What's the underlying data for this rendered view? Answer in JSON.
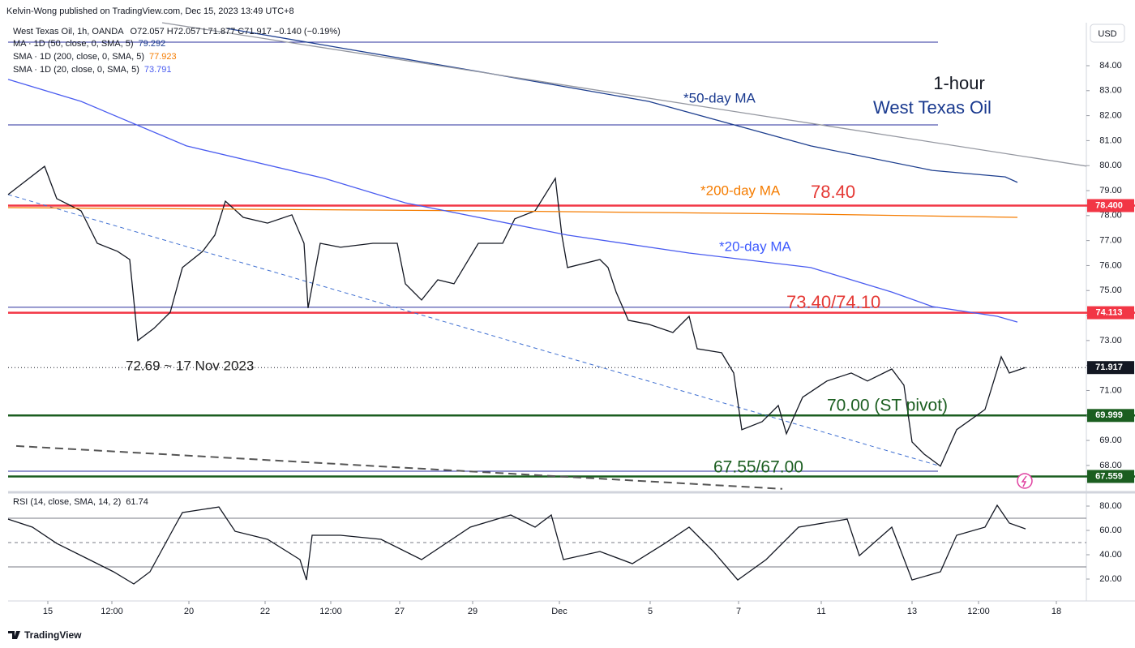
{
  "header": "Kelvin-Wong published on TradingView.com, Dec 15, 2023 13:49 UTC+8",
  "footer": "TradingView",
  "currency": "USD",
  "chart_data": [
    {
      "type": "line",
      "legend_title": "West Texas Oil, 1h, OANDA",
      "ohlc": "O72.057  H72.057  L71.877  C71.917  −0.140 (−0.19%)",
      "xlim": [
        0,
        133
      ],
      "ylim": [
        66.99,
        85.72
      ],
      "yticks": [
        {
          "value": 84,
          "label": "84.00"
        },
        {
          "value": 83,
          "label": "83.00"
        },
        {
          "value": 82,
          "label": "82.00"
        },
        {
          "value": 81,
          "label": "81.00"
        },
        {
          "value": 80,
          "label": "80.00"
        },
        {
          "value": 79,
          "label": "79.00"
        },
        {
          "value": 78,
          "label": "78.00"
        },
        {
          "value": 77,
          "label": "77.00"
        },
        {
          "value": 76,
          "label": "76.00"
        },
        {
          "value": 75,
          "label": "75.00"
        },
        {
          "value": 74,
          "label": "74.00"
        },
        {
          "value": 73,
          "label": "73.00"
        },
        {
          "value": 72,
          "label": "72.00"
        },
        {
          "value": 71,
          "label": "71.00"
        },
        {
          "value": 70,
          "label": "70.00"
        },
        {
          "value": 69,
          "label": "69.00"
        },
        {
          "value": 68,
          "label": "68.00"
        }
      ],
      "series": [
        {
          "color": "#131722",
          "x": [
            0,
            4.5,
            6,
            9,
            11,
            13.5,
            15,
            16,
            18,
            20,
            21.5,
            24,
            25.5,
            26.8,
            29,
            32,
            35,
            36.5,
            37,
            38.5,
            41,
            45,
            48,
            49,
            51,
            53,
            55,
            58,
            61,
            62.5,
            65,
            67.5,
            68.3,
            69,
            73,
            74,
            75,
            76.5,
            79,
            82,
            84,
            85,
            88,
            89.5,
            90.5,
            93,
            95,
            96,
            98,
            101,
            104,
            106,
            109,
            110.5,
            111.5,
            113,
            115,
            117,
            120.5,
            122.5,
            123.5,
            125.5
          ],
          "values": [
            78.84,
            79.97,
            78.68,
            78.19,
            76.89,
            76.57,
            76.24,
            73.0,
            73.49,
            74.13,
            75.92,
            76.57,
            77.22,
            78.58,
            77.93,
            77.7,
            78.03,
            76.89,
            74.3,
            76.89,
            76.73,
            76.89,
            76.89,
            75.27,
            74.62,
            75.43,
            75.27,
            76.89,
            76.89,
            77.87,
            78.19,
            79.49,
            77.22,
            75.92,
            76.24,
            75.92,
            74.94,
            73.81,
            73.65,
            73.32,
            73.97,
            72.67,
            72.51,
            71.7,
            69.43,
            69.75,
            70.4,
            69.27,
            70.73,
            71.38,
            71.7,
            71.38,
            71.86,
            71.21,
            68.94,
            68.45,
            67.97,
            69.43,
            70.24,
            72.35,
            71.7,
            71.92
          ]
        },
        {
          "name": "MA · 1D (50, close, 0, SMA, 5)",
          "last": 79.292,
          "color": "#1e3f8f",
          "x": [
            27,
            59,
            79,
            99,
            114,
            123,
            124.5
          ],
          "values": [
            85.49,
            83.71,
            82.57,
            80.79,
            79.81,
            79.55,
            79.33
          ]
        },
        {
          "name": "SMA · 1D (200, close, 0, SMA, 5)",
          "last": 77.923,
          "color": "#f57c00",
          "x": [
            0,
            59,
            99,
            124.5
          ],
          "values": [
            78.32,
            78.19,
            78.06,
            77.93
          ]
        },
        {
          "name": "SMA · 1D (20, close, 0, SMA, 5)",
          "last": 73.791,
          "color": "#4a5cf0",
          "x": [
            0,
            9,
            22,
            39,
            49,
            69,
            84,
            99,
            109,
            114,
            122,
            124.5
          ],
          "values": [
            83.45,
            82.57,
            80.79,
            79.49,
            78.51,
            77.22,
            76.5,
            75.92,
            74.94,
            74.36,
            73.97,
            73.74
          ]
        },
        {
          "color": "#9598a1",
          "x": [
            19,
            133
          ],
          "values": [
            85.72,
            79.98
          ]
        }
      ],
      "trendlines": [
        {
          "color": "#3f6fd1",
          "dash": true,
          "x": [
            0,
            115
          ],
          "values": [
            78.84,
            67.97
          ]
        },
        {
          "color": "#555555",
          "dash": true,
          "x": [
            1,
            95.5
          ],
          "values": [
            68.78,
            67.06
          ]
        }
      ],
      "levels": [
        {
          "value": 84.94,
          "color": "#2a2f9e"
        },
        {
          "value": 81.63,
          "color": "#2a2f9e"
        },
        {
          "value": 74.33,
          "color": "#2a2f9e"
        },
        {
          "value": 67.77,
          "color": "#2a2f9e"
        },
        {
          "value": 78.4,
          "color": "#f23645"
        },
        {
          "value": 74.113,
          "color": "#f23645"
        },
        {
          "value": 69.999,
          "color": "#1b5e20"
        },
        {
          "value": 67.559,
          "color": "#1b5e20"
        }
      ],
      "price_labels": [
        {
          "value": 78.4,
          "label": "78.400",
          "color": "#f23645"
        },
        {
          "value": 74.113,
          "label": "74.113",
          "color": "#f23645"
        },
        {
          "value": 71.917,
          "label": "71.917",
          "color": "#131722"
        },
        {
          "value": 69.999,
          "label": "69.999",
          "color": "#1b5e20"
        },
        {
          "value": 67.559,
          "label": "67.559",
          "color": "#1b5e20"
        }
      ],
      "annotations": [
        "1-hour",
        "West Texas Oil",
        "*50-day MA",
        "*200-day MA",
        "78.40",
        "*20-day MA",
        "73.40/74.10",
        "72.69 ~ 17 Nov 2023",
        "70.00 (ST pivot)",
        "67.55/67.00"
      ]
    },
    {
      "type": "line",
      "legend_title": "RSI (14, close, SMA, 14, 2)",
      "last": 61.74,
      "xlim": [
        0,
        133
      ],
      "ylim": [
        2.67,
        88
      ],
      "yticks": [
        {
          "value": 80,
          "label": "80.00"
        },
        {
          "value": 60,
          "label": "60.00"
        },
        {
          "value": 40,
          "label": "40.00"
        },
        {
          "value": 20,
          "label": "20.00"
        }
      ],
      "levels": [
        70,
        50,
        30
      ],
      "xticks": [
        {
          "value": 4.9,
          "label": "15"
        },
        {
          "value": 12.8,
          "label": "12:00"
        },
        {
          "value": 22.3,
          "label": "20"
        },
        {
          "value": 31.7,
          "label": "22"
        },
        {
          "value": 39.8,
          "label": "12:00"
        },
        {
          "value": 48.3,
          "label": "27"
        },
        {
          "value": 57.3,
          "label": "29"
        },
        {
          "value": 68,
          "label": "Dec"
        },
        {
          "value": 79.2,
          "label": "5"
        },
        {
          "value": 90.1,
          "label": "7"
        },
        {
          "value": 100.3,
          "label": "11"
        },
        {
          "value": 111.5,
          "label": "13"
        },
        {
          "value": 119.7,
          "label": "12:00"
        },
        {
          "value": 129.3,
          "label": "18"
        }
      ],
      "series": [
        {
          "color": "#131722",
          "x": [
            0,
            3,
            6,
            10,
            13,
            15.5,
            17.5,
            20.5,
            21.5,
            26,
            28,
            32,
            36,
            36.8,
            37.5,
            41,
            46,
            51,
            57,
            62,
            65,
            67,
            68.5,
            73,
            77,
            81,
            84,
            87,
            90,
            93.5,
            97.5,
            103.5,
            105,
            109,
            111.5,
            115,
            117,
            120.5,
            122,
            123.5,
            125.5
          ],
          "values": [
            69.3,
            62.7,
            49.3,
            36,
            26,
            16,
            26,
            62.7,
            74.7,
            79.3,
            59.3,
            52.7,
            36,
            19.3,
            56,
            56,
            52.7,
            36,
            62.7,
            72.7,
            62.7,
            72.7,
            36,
            42.7,
            32.7,
            49.3,
            62.7,
            42.7,
            19.3,
            36,
            62.7,
            69.3,
            39.3,
            62.7,
            19.3,
            26,
            56,
            62.7,
            80.7,
            66,
            61.3
          ]
        }
      ]
    }
  ]
}
